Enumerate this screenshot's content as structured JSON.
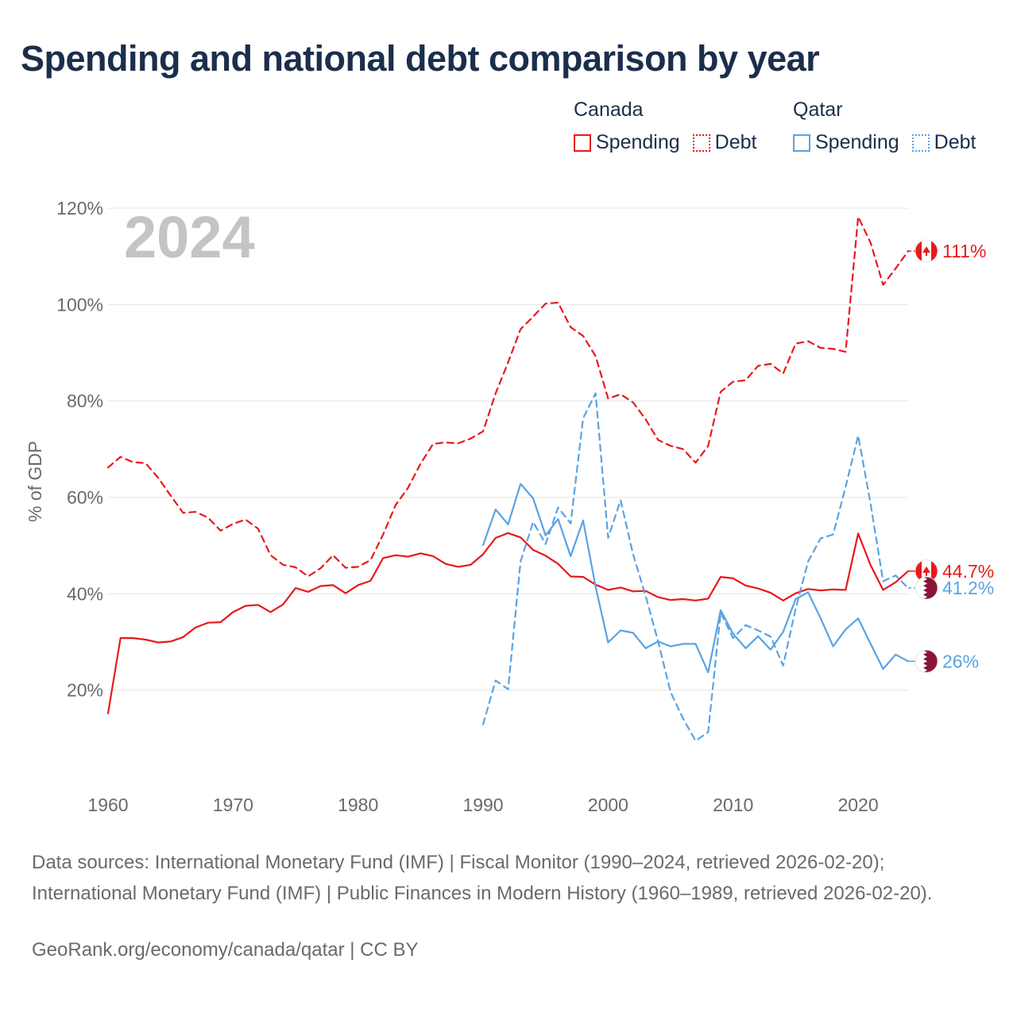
{
  "title": "Spending and national debt comparison by year",
  "legend": {
    "groups": [
      {
        "name": "Canada",
        "items": [
          {
            "label": "Spending"
          },
          {
            "label": "Debt"
          }
        ]
      },
      {
        "name": "Qatar",
        "items": [
          {
            "label": "Spending"
          },
          {
            "label": "Debt"
          }
        ]
      }
    ]
  },
  "colors": {
    "canada": "#e8191c",
    "qatar": "#5aa3e4",
    "qatar_flag": "#8a1538",
    "year": "#c4c4c4"
  },
  "footer": {
    "source": "Data sources: International Monetary Fund (IMF) | Fiscal Monitor (1990–2024, retrieved 2026-02-20); International Monetary Fund (IMF) | Public Finances in Modern History (1960–1989, retrieved 2026-02-20).",
    "credit": "GeoRank.org/economy/canada/qatar | CC BY"
  },
  "chart_data": {
    "type": "line",
    "year_label": "2024",
    "ylabel": "% of GDP",
    "ylim": [
      0,
      120
    ],
    "xlim": [
      1960,
      2024
    ],
    "y_ticks": [
      {
        "value": 20,
        "label": "20%"
      },
      {
        "value": 40,
        "label": "40%"
      },
      {
        "value": 60,
        "label": "60%"
      },
      {
        "value": 80,
        "label": "80%"
      },
      {
        "value": 100,
        "label": "100%"
      },
      {
        "value": 120,
        "label": "120%"
      }
    ],
    "x_ticks": [
      {
        "value": 1960,
        "label": "1960"
      },
      {
        "value": 1970,
        "label": "1970"
      },
      {
        "value": 1980,
        "label": "1980"
      },
      {
        "value": 1990,
        "label": "1990"
      },
      {
        "value": 2000,
        "label": "2000"
      },
      {
        "value": 2010,
        "label": "2010"
      },
      {
        "value": 2020,
        "label": "2020"
      }
    ],
    "series": [
      {
        "id": "ca-spending",
        "country": "Canada",
        "name": "Spending",
        "dashed": false,
        "color": "#e8191c",
        "flag": "canada",
        "end_label": "44.7%",
        "start": 1960,
        "values": [
          15.2,
          30.8,
          30.8,
          30.5,
          29.9,
          30.1,
          31.0,
          33.0,
          34.0,
          34.1,
          36.2,
          37.5,
          37.7,
          36.2,
          37.8,
          41.2,
          40.4,
          41.6,
          41.8,
          40.1,
          41.8,
          42.7,
          47.4,
          48.0,
          47.7,
          48.4,
          47.8,
          46.2,
          45.6,
          46.0,
          48.2,
          51.6,
          52.6,
          51.7,
          49.1,
          47.9,
          46.2,
          43.6,
          43.5,
          41.9,
          40.8,
          41.3,
          40.5,
          40.6,
          39.3,
          38.7,
          38.9,
          38.6,
          39.0,
          43.5,
          43.2,
          41.7,
          41.1,
          40.2,
          38.6,
          40.1,
          41.0,
          40.7,
          40.9,
          40.8,
          52.5,
          45.9,
          40.8,
          42.4,
          44.7
        ]
      },
      {
        "id": "ca-debt",
        "country": "Canada",
        "name": "Debt",
        "dashed": true,
        "color": "#e8191c",
        "flag": "canada",
        "end_label": "111%",
        "start": 1960,
        "values": [
          66.2,
          68.4,
          67.3,
          67.1,
          64.1,
          60.4,
          56.8,
          57.0,
          55.8,
          53.1,
          54.5,
          55.4,
          53.5,
          48.0,
          46.0,
          45.5,
          43.6,
          45.3,
          48.0,
          45.4,
          45.6,
          47.0,
          52.3,
          58.4,
          62.0,
          67.0,
          71.1,
          71.4,
          71.2,
          72.2,
          73.7,
          81.6,
          88.0,
          94.9,
          97.5,
          100.2,
          100.4,
          95.3,
          93.5,
          89.3,
          80.5,
          81.4,
          79.7,
          76.2,
          71.9,
          70.7,
          70.0,
          67.2,
          70.7,
          81.9,
          84.0,
          84.3,
          87.3,
          87.7,
          85.7,
          91.9,
          92.4,
          91.0,
          90.8,
          90.2,
          118.2,
          112.8,
          104.1,
          107.5,
          111.1
        ]
      },
      {
        "id": "qa-spending",
        "country": "Qatar",
        "name": "Spending",
        "dashed": false,
        "color": "#5aa3e4",
        "flag": "qatar",
        "end_label": "26%",
        "start": 1990,
        "values": [
          50.1,
          57.5,
          54.4,
          62.8,
          59.8,
          52.1,
          55.5,
          47.8,
          55.2,
          41.5,
          29.9,
          32.4,
          31.9,
          28.7,
          30.1,
          29.1,
          29.6,
          29.6,
          23.7,
          36.6,
          31.7,
          28.7,
          31.2,
          28.4,
          32.1,
          38.9,
          40.3,
          34.9,
          29.1,
          32.6,
          34.9,
          29.6,
          24.4,
          27.4,
          26.0
        ]
      },
      {
        "id": "qa-debt",
        "country": "Qatar",
        "name": "Debt",
        "dashed": true,
        "color": "#5aa3e4",
        "flag": "qatar",
        "end_label": "41.2%",
        "start": 1990,
        "values": [
          12.9,
          22.0,
          20.2,
          46.7,
          54.9,
          50.3,
          57.9,
          54.6,
          76.4,
          81.6,
          51.6,
          59.4,
          48.2,
          39.6,
          30.1,
          19.6,
          14.1,
          9.5,
          11.3,
          36.1,
          30.8,
          33.5,
          32.4,
          31.1,
          25.1,
          36.9,
          46.7,
          51.5,
          52.3,
          62.2,
          72.8,
          58.6,
          42.6,
          43.8,
          41.2
        ]
      }
    ]
  }
}
